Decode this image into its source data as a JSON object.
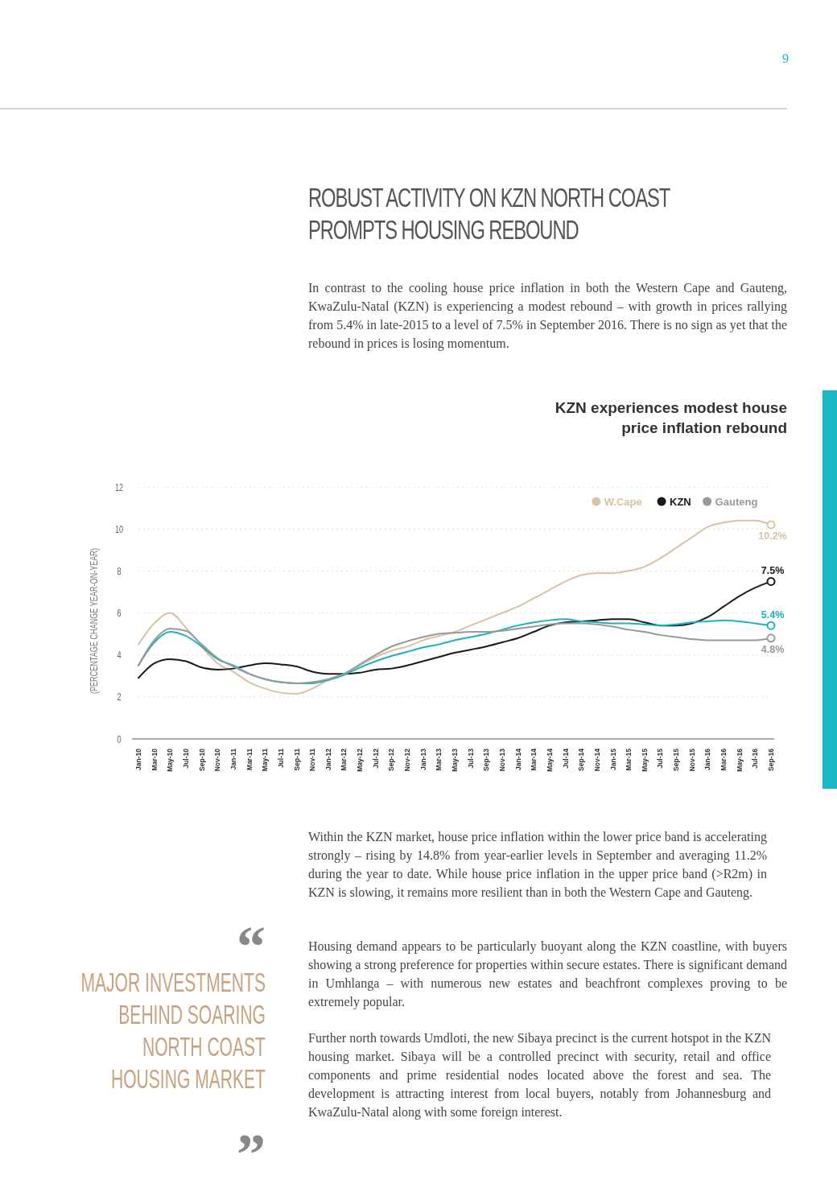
{
  "chart_data": {
    "type": "line",
    "title": "KZN experiences modest house price inflation rebound",
    "ylabel": "(PERCENTAGE CHANGE YEAR-ON-YEAR)",
    "categories": [
      "Jan-10",
      "Mar-10",
      "May-10",
      "Jul-10",
      "Sep-10",
      "Nov-10",
      "Jan-11",
      "Mar-11",
      "May-11",
      "Jul-11",
      "Sep-11",
      "Nov-11",
      "Jan-12",
      "Mar-12",
      "May-12",
      "Jul-12",
      "Sep-12",
      "Nov-12",
      "Jan-13",
      "Mar-13",
      "May-13",
      "Jul-13",
      "Sep-13",
      "Nov-13",
      "Jan-14",
      "Mar-14",
      "May-14",
      "Jul-14",
      "Sep-14",
      "Nov-14",
      "Jan-15",
      "Mar-15",
      "May-15",
      "Jul-15",
      "Sep-15",
      "Nov-15",
      "Jan-16",
      "Mar-16",
      "May-16",
      "Jul-16",
      "Sep-16"
    ],
    "series": [
      {
        "name": "W.Cape",
        "color": "#d8c3a5",
        "values": [
          4.5,
          5.5,
          6.0,
          5.3,
          4.4,
          3.6,
          3.2,
          2.7,
          2.4,
          2.2,
          2.15,
          2.4,
          2.8,
          3.1,
          3.5,
          3.9,
          4.2,
          4.4,
          4.7,
          4.9,
          5.1,
          5.4,
          5.7,
          6.0,
          6.3,
          6.7,
          7.1,
          7.5,
          7.8,
          7.9,
          7.9,
          8.0,
          8.2,
          8.6,
          9.1,
          9.6,
          10.1,
          10.3,
          10.4,
          10.4,
          10.2
        ],
        "value_labels": [
          null,
          null,
          null,
          null,
          null,
          null,
          null,
          null,
          null,
          null,
          null,
          null,
          null,
          null,
          null,
          null,
          null,
          null,
          null,
          null,
          null,
          null,
          null,
          null,
          null,
          null,
          null,
          null,
          null,
          null,
          null,
          null,
          null,
          null,
          null,
          null,
          null,
          null,
          null,
          null,
          "10.2%"
        ]
      },
      {
        "name": "KZN",
        "color": "#1a1a1a",
        "values": [
          2.9,
          3.6,
          3.8,
          3.7,
          3.4,
          3.3,
          3.35,
          3.5,
          3.6,
          3.55,
          3.45,
          3.2,
          3.1,
          3.1,
          3.15,
          3.3,
          3.35,
          3.5,
          3.7,
          3.9,
          4.1,
          4.25,
          4.4,
          4.6,
          4.8,
          5.1,
          5.4,
          5.55,
          5.6,
          5.65,
          5.7,
          5.7,
          5.55,
          5.4,
          5.4,
          5.5,
          5.8,
          6.3,
          6.8,
          7.2,
          7.5
        ],
        "value_labels": [
          null,
          null,
          null,
          null,
          null,
          null,
          null,
          null,
          null,
          null,
          null,
          null,
          null,
          null,
          null,
          null,
          null,
          null,
          null,
          null,
          null,
          null,
          null,
          null,
          null,
          null,
          null,
          null,
          null,
          null,
          null,
          null,
          null,
          null,
          null,
          null,
          null,
          null,
          null,
          null,
          "7.5%"
        ]
      },
      {
        "color": "#1ab3c0",
        "values": [
          3.5,
          4.6,
          5.1,
          4.9,
          4.4,
          3.8,
          3.5,
          3.1,
          2.85,
          2.7,
          2.65,
          2.65,
          2.8,
          3.05,
          3.4,
          3.7,
          3.95,
          4.15,
          4.35,
          4.5,
          4.7,
          4.85,
          5.0,
          5.2,
          5.4,
          5.55,
          5.65,
          5.7,
          5.6,
          5.55,
          5.5,
          5.5,
          5.45,
          5.4,
          5.45,
          5.55,
          5.6,
          5.65,
          5.6,
          5.5,
          5.4
        ],
        "value_labels": [
          null,
          null,
          null,
          null,
          null,
          null,
          null,
          null,
          null,
          null,
          null,
          null,
          null,
          null,
          null,
          null,
          null,
          null,
          null,
          null,
          null,
          null,
          null,
          null,
          null,
          null,
          null,
          null,
          null,
          null,
          null,
          null,
          null,
          null,
          null,
          null,
          null,
          null,
          null,
          null,
          "5.4%"
        ]
      },
      {
        "name": "Gauteng",
        "color": "#999999",
        "values": [
          3.5,
          4.7,
          5.25,
          5.15,
          4.5,
          3.85,
          3.45,
          3.1,
          2.85,
          2.7,
          2.65,
          2.7,
          2.85,
          3.1,
          3.55,
          4.0,
          4.4,
          4.65,
          4.85,
          5.0,
          5.05,
          5.1,
          5.1,
          5.15,
          5.25,
          5.35,
          5.45,
          5.5,
          5.5,
          5.45,
          5.35,
          5.2,
          5.1,
          4.95,
          4.85,
          4.75,
          4.7,
          4.7,
          4.7,
          4.7,
          4.8
        ],
        "value_labels": [
          null,
          null,
          null,
          null,
          null,
          null,
          null,
          null,
          null,
          null,
          null,
          null,
          null,
          null,
          null,
          null,
          null,
          null,
          null,
          null,
          null,
          null,
          null,
          null,
          null,
          null,
          null,
          null,
          null,
          null,
          null,
          null,
          null,
          null,
          null,
          null,
          null,
          null,
          null,
          null,
          "4.8%"
        ]
      }
    ],
    "ylim": [
      0,
      12
    ],
    "yticks": [
      0,
      2,
      4,
      6,
      8,
      10,
      12
    ],
    "grid": "y",
    "legend": "top right",
    "marker": "none",
    "line_style": "solid",
    "annotations": [
      "ROBUST ACTIVITY ON KZN NORTH COAST PROMPTS HOUSING REBOUND",
      "In contrast to the cooling house price inflation in both the Western Cape and Gauteng, KwaZulu-Natal (KZN) is experiencing a modest rebound – with growth in prices rallying from 5.4% in late-2015 to a level of 7.5% in September 2016. There is no sign as yet that the rebound in prices is losing momentum.",
      "Within the KZN market, house price inflation within the lower price band is accelerating strongly – rising by 14.8% from year-earlier levels in September and averaging 11.2% during the year to date. While house price inflation in the upper price band (>R2m) in KZN is slowing, it remains more resilient than in both the Western Cape and Gauteng.",
      "Housing demand appears to be particularly buoyant along the KZN coastline, with buyers showing a strong preference for properties within secure estates. There is significant demand in Umhlanga – with numerous new estates and beachfront complexes proving to be extremely popular.",
      "Further north towards Umdloti, the new Sibaya precinct is the current hotspot in the KZN housing market. Sibaya will be a controlled precinct with security, retail and office components and prime residential nodes located above the forest and sea. The development is attracting interest from local buyers, notably from Johannesburg and KwaZulu-Natal along with some foreign interest.",
      "MAJOR INVESTMENTS BEHIND SOARING NORTH COAST HOUSING MARKET",
      "“",
      "”",
      "9"
    ]
  }
}
